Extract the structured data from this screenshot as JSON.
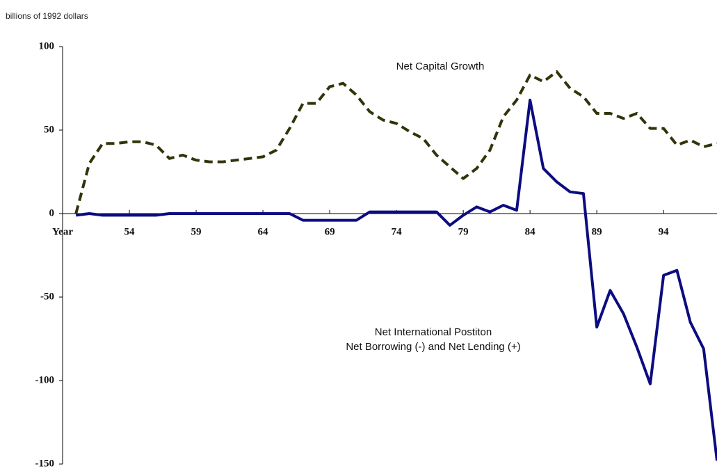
{
  "chart_data": {
    "type": "line",
    "subtitle": "billions of 1992 dollars",
    "x": [
      50,
      51,
      52,
      53,
      54,
      55,
      56,
      57,
      58,
      59,
      60,
      61,
      62,
      63,
      64,
      65,
      66,
      67,
      68,
      69,
      70,
      71,
      72,
      73,
      74,
      75,
      76,
      77,
      78,
      79,
      80,
      81,
      82,
      83,
      84,
      85,
      86,
      87,
      88,
      89,
      90,
      91,
      92,
      93,
      94,
      95,
      96,
      97,
      98
    ],
    "series": [
      {
        "name": "Net Capital Growth",
        "color": "#33330a",
        "dash": true,
        "values": [
          0,
          30,
          42,
          42,
          43,
          43,
          41,
          33,
          35,
          32,
          31,
          31,
          32,
          33,
          34,
          38,
          51,
          66,
          66,
          76,
          78,
          71,
          61,
          56,
          54,
          49,
          45,
          35,
          28,
          21,
          27,
          38,
          58,
          68,
          83,
          79,
          85,
          75,
          70,
          60,
          60,
          57,
          60,
          51,
          51,
          41,
          44,
          40,
          42
        ]
      },
      {
        "name": "Net International Postiton",
        "color": "#0c0c80",
        "dash": false,
        "values": [
          -1,
          0,
          -1,
          -1,
          -1,
          -1,
          -1,
          0,
          0,
          0,
          0,
          0,
          0,
          0,
          0,
          0,
          0,
          -4,
          -4,
          -4,
          -4,
          -4,
          1,
          1,
          1,
          1,
          1,
          1,
          -7,
          -1,
          4,
          1,
          5,
          2,
          68,
          27,
          19,
          13,
          12,
          -68,
          -46,
          -60,
          -80,
          -102,
          -37,
          -34,
          -65,
          -81,
          -148
        ]
      }
    ],
    "annotations": [
      "Net Borrowing (-) and Net Lending (+)"
    ],
    "xlim": [
      49,
      98
    ],
    "xticks": [
      {
        "value": 49,
        "label": "Year"
      },
      54,
      59,
      64,
      69,
      74,
      79,
      84,
      89,
      94
    ],
    "ylim": [
      -150,
      100
    ],
    "yticks": [
      100,
      50,
      0,
      -50,
      -100,
      -150
    ]
  }
}
